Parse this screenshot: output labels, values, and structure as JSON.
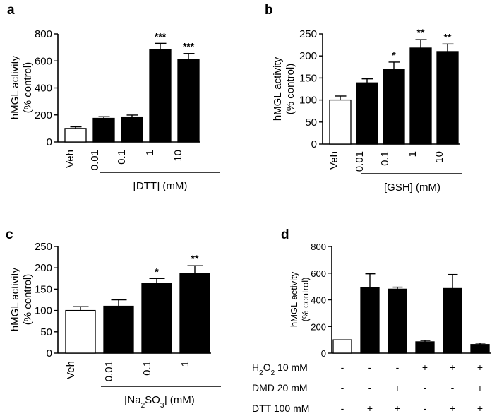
{
  "chart_data": [
    {
      "panel": "a",
      "type": "bar",
      "categories": [
        "Veh",
        "0.01",
        "0.1",
        "1",
        "10"
      ],
      "values": [
        100,
        175,
        185,
        685,
        610
      ],
      "errors": [
        12,
        12,
        14,
        45,
        45
      ],
      "fill": [
        "#ffffff",
        "#000000",
        "#000000",
        "#000000",
        "#000000"
      ],
      "significance": [
        "",
        "",
        "",
        "***",
        "***"
      ],
      "ylabel": [
        "hMGL activity",
        "(% control)"
      ],
      "xlabel": "[DTT] (mM)",
      "ylim": [
        0,
        800
      ],
      "yticks": [
        0,
        200,
        400,
        600,
        800
      ]
    },
    {
      "panel": "b",
      "type": "bar",
      "categories": [
        "Veh",
        "0.01",
        "0.1",
        "1",
        "10"
      ],
      "values": [
        100,
        139,
        170,
        218,
        210
      ],
      "errors": [
        9,
        9,
        16,
        19,
        17
      ],
      "fill": [
        "#ffffff",
        "#000000",
        "#000000",
        "#000000",
        "#000000"
      ],
      "significance": [
        "",
        "",
        "*",
        "**",
        "**"
      ],
      "ylabel": [
        "hMGL activity",
        "(% control)"
      ],
      "xlabel": "[GSH] (mM)",
      "ylim": [
        0,
        250
      ],
      "yticks": [
        0,
        50,
        100,
        150,
        200,
        250
      ]
    },
    {
      "panel": "c",
      "type": "bar",
      "categories": [
        "Veh",
        "0.01",
        "0.1",
        "1"
      ],
      "values": [
        100,
        110,
        164,
        187
      ],
      "errors": [
        9,
        15,
        11,
        18
      ],
      "fill": [
        "#ffffff",
        "#000000",
        "#000000",
        "#000000"
      ],
      "significance": [
        "",
        "",
        "*",
        "**"
      ],
      "ylabel": [
        "hMGL activity",
        "(% control)"
      ],
      "xlabel_parts": [
        "[Na",
        "2",
        "SO",
        "3",
        "] (mM)"
      ],
      "ylim": [
        0,
        250
      ],
      "yticks": [
        0,
        50,
        100,
        150,
        200,
        250
      ]
    },
    {
      "panel": "d",
      "type": "bar",
      "values": [
        100,
        490,
        480,
        85,
        485,
        65
      ],
      "errors": [
        0,
        105,
        15,
        10,
        105,
        10
      ],
      "fill": [
        "#ffffff",
        "#000000",
        "#000000",
        "#000000",
        "#000000",
        "#000000"
      ],
      "ylabel": [
        "hMGL activity",
        "(% control)"
      ],
      "ylim": [
        0,
        800
      ],
      "yticks": [
        0,
        200,
        400,
        600,
        800
      ],
      "conditions": [
        {
          "label_parts": [
            "H",
            "2",
            "O",
            "2",
            " 10 mM"
          ],
          "signs": [
            "-",
            "-",
            "-",
            "+",
            "+",
            "+"
          ]
        },
        {
          "label": "DMD 20 mM",
          "signs": [
            "-",
            "-",
            "+",
            "-",
            "-",
            "+"
          ]
        },
        {
          "label": "DTT 100 mM",
          "signs": [
            "-",
            "+",
            "+",
            "-",
            "+",
            "+"
          ]
        }
      ]
    }
  ]
}
